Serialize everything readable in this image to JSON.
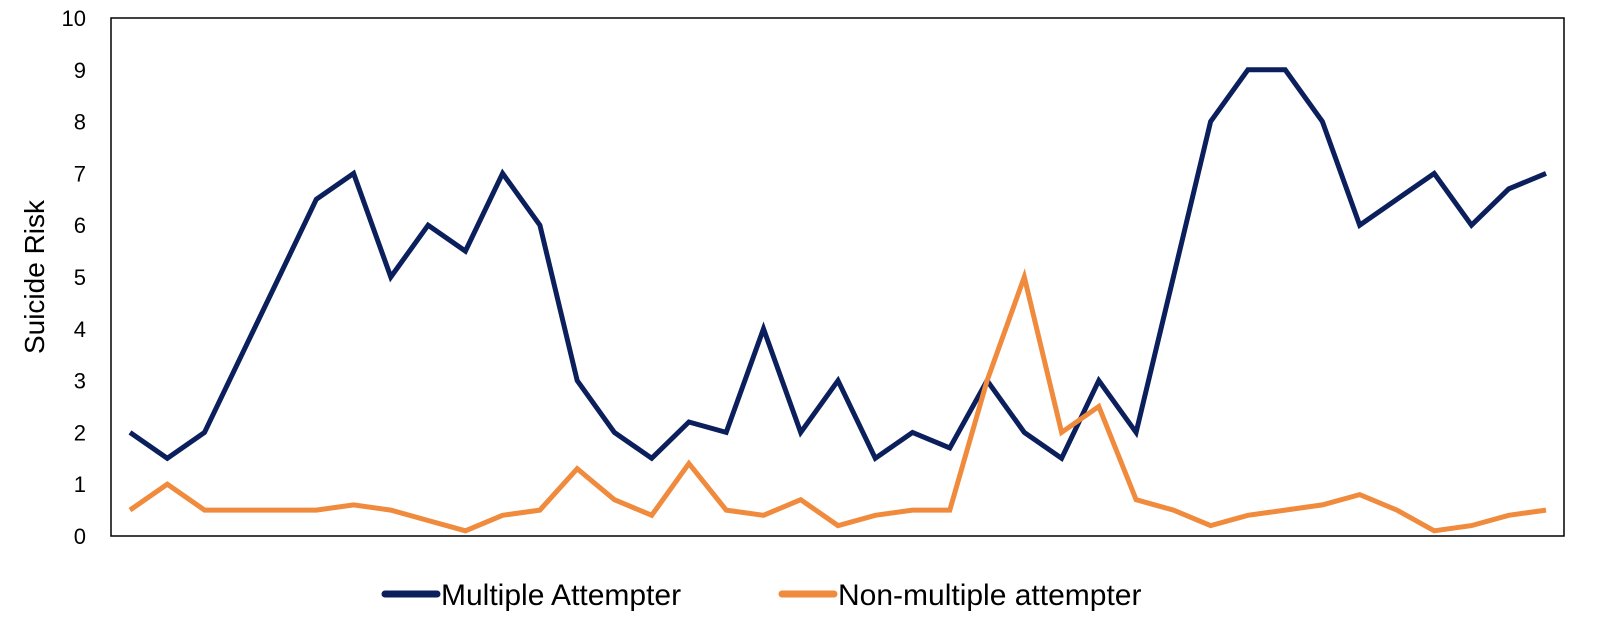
{
  "chart_data": {
    "type": "line",
    "title": "",
    "xlabel": "",
    "ylabel": "Suicide Risk",
    "ylim": [
      0,
      10
    ],
    "yticks": [
      "0",
      "1",
      "2",
      "3",
      "4",
      "5",
      "6",
      "7",
      "8",
      "9",
      "10"
    ],
    "grid": false,
    "legend_position": "bottom",
    "series": [
      {
        "name": "Multiple Attempter",
        "color": "#0b1f5c",
        "values": [
          2,
          1.5,
          2,
          3.5,
          5,
          6.5,
          7,
          5,
          6,
          5.5,
          7,
          6,
          3,
          2,
          1.5,
          2.2,
          2,
          4,
          2,
          3,
          1.5,
          2,
          1.7,
          3,
          2,
          1.5,
          3,
          2,
          5,
          8,
          9,
          9,
          8,
          6,
          6.5,
          7,
          6,
          6.7,
          7
        ]
      },
      {
        "name": "Non-multiple attempter",
        "color": "#f08a3c",
        "values": [
          0.5,
          1,
          0.5,
          0.5,
          0.5,
          0.5,
          0.6,
          0.5,
          0.3,
          0.1,
          0.4,
          0.5,
          1.3,
          0.7,
          0.4,
          1.4,
          0.5,
          0.4,
          0.7,
          0.2,
          0.4,
          0.5,
          0.5,
          3,
          5,
          2,
          2.5,
          0.7,
          0.5,
          0.2,
          0.4,
          0.5,
          0.6,
          0.8,
          0.5,
          0.1,
          0.2,
          0.4,
          0.5
        ]
      }
    ]
  }
}
